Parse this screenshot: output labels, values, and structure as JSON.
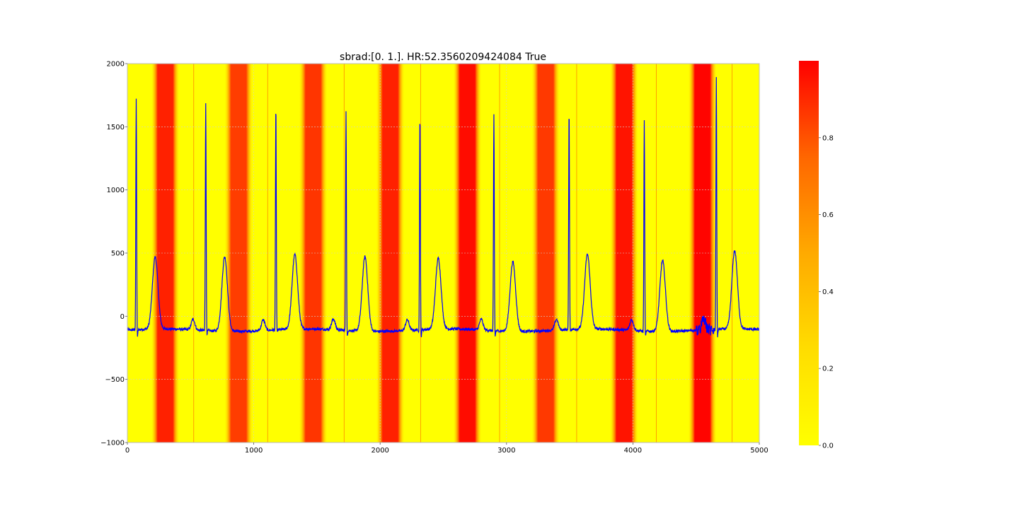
{
  "chart_data": {
    "type": "line",
    "title": "sbrad:[0. 1.]. HR:52.3560209424084  True",
    "xlabel": "",
    "ylabel": "",
    "xlim": [
      0,
      5000
    ],
    "ylim": [
      -1000,
      2000
    ],
    "x_ticks": [
      0,
      1000,
      2000,
      3000,
      4000,
      5000
    ],
    "y_ticks": [
      -1000,
      -500,
      0,
      500,
      1000,
      1500,
      2000
    ],
    "x_tick_labels": [
      "0",
      "1000",
      "2000",
      "3000",
      "4000",
      "5000"
    ],
    "y_tick_labels": [
      "−1000",
      "−500",
      "0",
      "500",
      "1000",
      "1500",
      "2000"
    ],
    "grid": true,
    "line_color": "#0000ff",
    "background_heatmap": {
      "colormap": "autumn_r",
      "colors": [
        "#ffff00",
        "#ffdd00",
        "#ffaa00",
        "#ff6600",
        "#ff0000"
      ],
      "value_range": [
        0,
        1
      ],
      "bands": [
        {
          "center": 300,
          "peak": 0.92
        },
        {
          "center": 880,
          "peak": 0.85
        },
        {
          "center": 1470,
          "peak": 0.87
        },
        {
          "center": 2080,
          "peak": 0.92
        },
        {
          "center": 2690,
          "peak": 0.97
        },
        {
          "center": 3310,
          "peak": 0.86
        },
        {
          "center": 3930,
          "peak": 0.95
        },
        {
          "center": 4550,
          "peak": 0.99
        }
      ],
      "separators": [
        525,
        1110,
        1715,
        2320,
        2945,
        3555,
        4185,
        4785
      ]
    },
    "beats": [
      {
        "r": 70,
        "t": 220,
        "r_amp": 1720,
        "t_amp": 460,
        "q": -230
      },
      {
        "r": 620,
        "t": 770,
        "r_amp": 1700,
        "t_amp": 480,
        "q": -170
      },
      {
        "r": 1175,
        "t": 1325,
        "r_amp": 1680,
        "t_amp": 480,
        "q": -170
      },
      {
        "r": 1730,
        "t": 1880,
        "r_amp": 1620,
        "t_amp": 480,
        "q": -210
      },
      {
        "r": 2315,
        "t": 2460,
        "r_amp": 1600,
        "t_amp": 450,
        "q": -220
      },
      {
        "r": 2900,
        "t": 3050,
        "r_amp": 1600,
        "t_amp": 440,
        "q": -210
      },
      {
        "r": 3495,
        "t": 3640,
        "r_amp": 1630,
        "t_amp": 480,
        "q": -150
      },
      {
        "r": 4090,
        "t": 4235,
        "r_amp": 1570,
        "t_amp": 450,
        "q": -210
      },
      {
        "r": 4660,
        "t": 4805,
        "r_amp": 1880,
        "t_amp": 510,
        "q": -240
      }
    ],
    "baseline": -110,
    "colorbar": {
      "range": [
        0,
        1
      ],
      "ticks": [
        0.0,
        0.2,
        0.4,
        0.6,
        0.8
      ],
      "tick_labels": [
        "0.0",
        "0.2",
        "0.4",
        "0.6",
        "0.8"
      ]
    }
  }
}
